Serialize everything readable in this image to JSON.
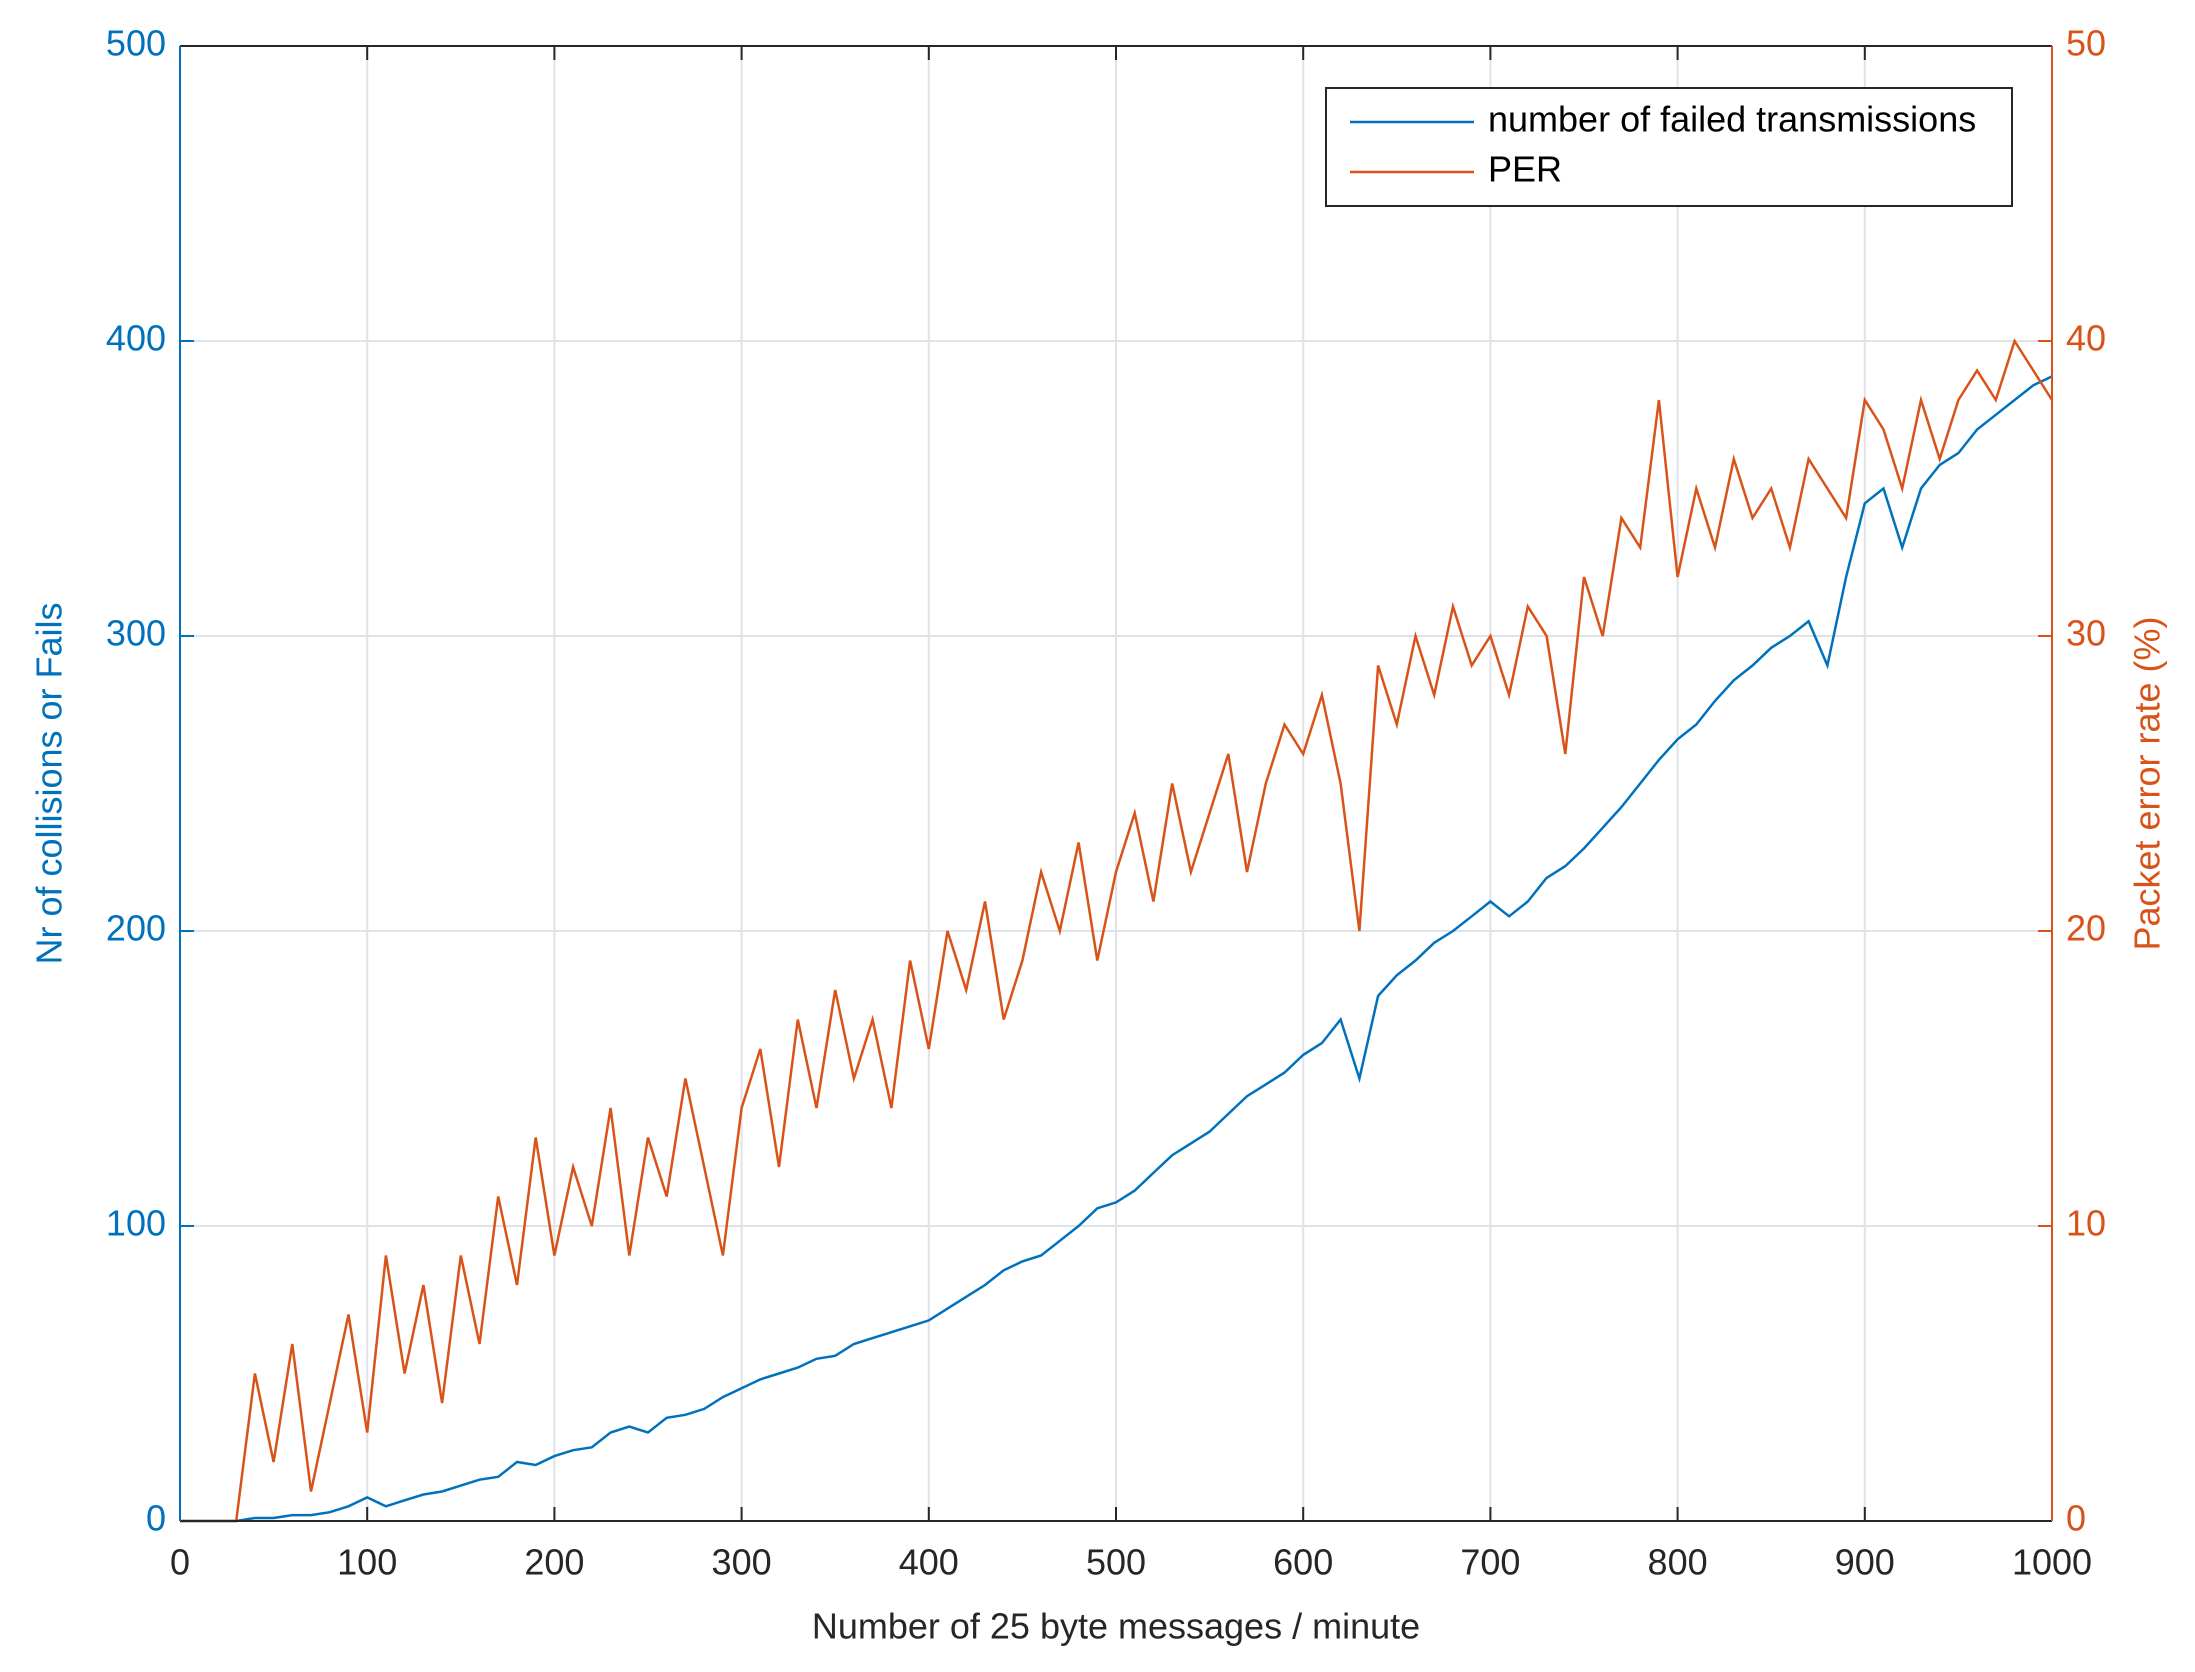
{
  "chart_data": {
    "type": "line",
    "x_label": "Number of 25 byte  messages / minute",
    "y_label": "Nr of collisions or Fails",
    "y2_label": "Packet error rate (%)",
    "x": [
      0,
      10,
      20,
      30,
      40,
      50,
      60,
      70,
      80,
      90,
      100,
      110,
      120,
      130,
      140,
      150,
      160,
      170,
      180,
      190,
      200,
      210,
      220,
      230,
      240,
      250,
      260,
      270,
      280,
      290,
      300,
      310,
      320,
      330,
      340,
      350,
      360,
      370,
      380,
      390,
      400,
      410,
      420,
      430,
      440,
      450,
      460,
      470,
      480,
      490,
      500,
      510,
      520,
      530,
      540,
      550,
      560,
      570,
      580,
      590,
      600,
      610,
      620,
      630,
      640,
      650,
      660,
      670,
      680,
      690,
      700,
      710,
      720,
      730,
      740,
      750,
      760,
      770,
      780,
      790,
      800,
      810,
      820,
      830,
      840,
      850,
      860,
      870,
      880,
      890,
      900,
      910,
      920,
      930,
      940,
      950,
      960,
      970,
      980,
      990,
      1000
    ],
    "series": [
      {
        "name": "number of failed transmissions",
        "color": "#0072bd",
        "axis": "y",
        "values": [
          0,
          0,
          0,
          0,
          1,
          1,
          2,
          2,
          3,
          5,
          8,
          5,
          7,
          9,
          10,
          12,
          14,
          15,
          20,
          19,
          22,
          24,
          25,
          30,
          32,
          30,
          35,
          36,
          38,
          42,
          45,
          48,
          50,
          52,
          55,
          56,
          60,
          62,
          64,
          66,
          68,
          72,
          76,
          80,
          85,
          88,
          90,
          95,
          100,
          106,
          108,
          112,
          118,
          124,
          128,
          132,
          138,
          144,
          148,
          152,
          158,
          162,
          170,
          150,
          178,
          185,
          190,
          196,
          200,
          205,
          210,
          205,
          210,
          218,
          222,
          228,
          235,
          242,
          250,
          258,
          265,
          270,
          278,
          285,
          290,
          296,
          300,
          305,
          290,
          320,
          345,
          350,
          330,
          350,
          358,
          362,
          370,
          375,
          380,
          385,
          388
        ]
      },
      {
        "name": "PER",
        "color": "#d95319",
        "axis": "y2",
        "values": [
          0,
          0,
          0,
          0,
          5,
          2,
          6,
          1,
          4,
          7,
          3,
          9,
          5,
          8,
          4,
          9,
          6,
          11,
          8,
          13,
          9,
          12,
          10,
          14,
          9,
          13,
          11,
          15,
          12,
          9,
          14,
          16,
          12,
          17,
          14,
          18,
          15,
          17,
          14,
          19,
          16,
          20,
          18,
          21,
          17,
          19,
          22,
          20,
          23,
          19,
          22,
          24,
          21,
          25,
          22,
          24,
          26,
          22,
          25,
          27,
          26,
          28,
          25,
          20,
          29,
          27,
          30,
          28,
          31,
          29,
          30,
          28,
          31,
          30,
          26,
          32,
          30,
          34,
          33,
          38,
          32,
          35,
          33,
          36,
          34,
          35,
          33,
          36,
          35,
          34,
          38,
          37,
          35,
          38,
          36,
          38,
          39,
          38,
          40,
          39,
          38
        ]
      }
    ],
    "xlim": [
      0,
      1000
    ],
    "xticks": [
      0,
      100,
      200,
      300,
      400,
      500,
      600,
      700,
      800,
      900,
      1000
    ],
    "ylim": [
      0,
      500
    ],
    "yticks": [
      0,
      100,
      200,
      300,
      400,
      500
    ],
    "y2lim": [
      0,
      50
    ],
    "y2ticks": [
      0,
      10,
      20,
      30,
      40,
      50
    ],
    "grid": true,
    "legend": "upper right"
  }
}
